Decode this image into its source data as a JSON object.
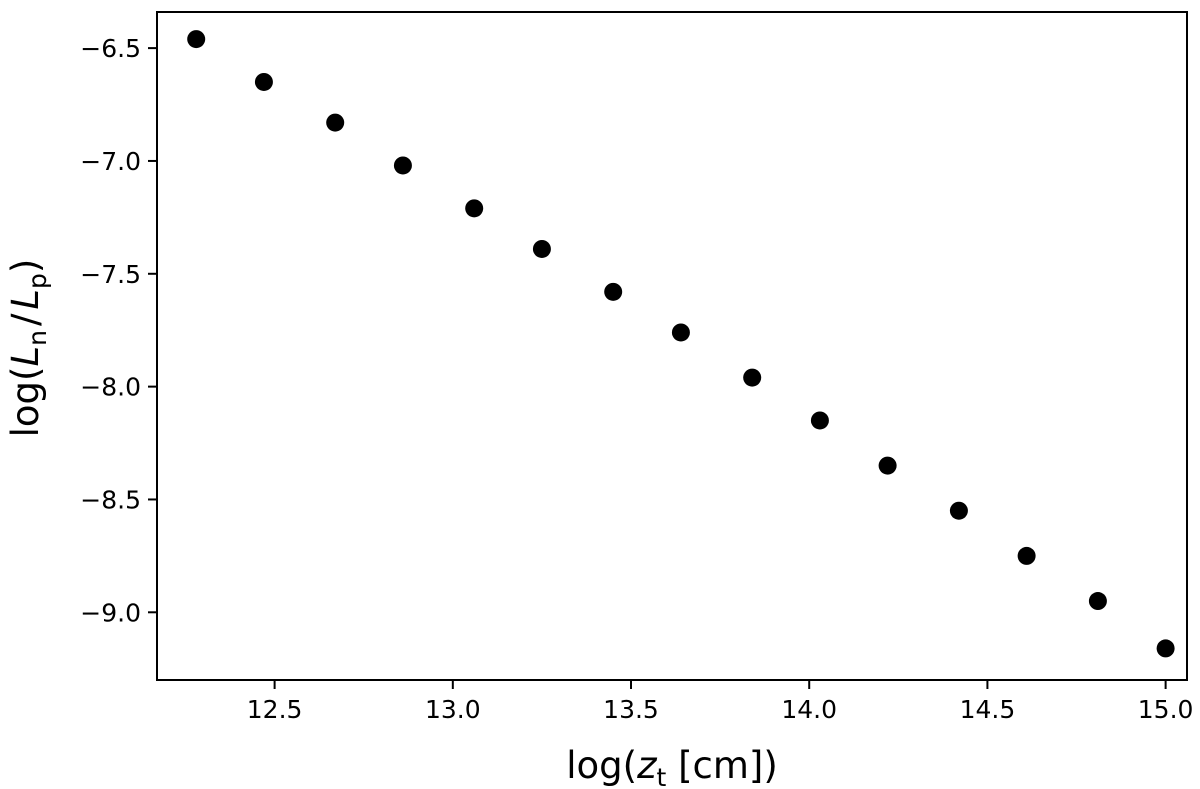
{
  "chart_data": {
    "type": "scatter",
    "title": "",
    "xlabel": {
      "prefix": "log(",
      "var": "z",
      "sub": "t",
      "suffix": " [cm])"
    },
    "ylabel": {
      "prefix": "log(",
      "var1": "L",
      "sub1": "n",
      "sep": "/",
      "var2": "L",
      "sub2": "p",
      "suffix": ")"
    },
    "xlim": [
      12.17,
      15.06
    ],
    "ylim": [
      -9.3,
      -6.34
    ],
    "xticks": [
      12.5,
      13.0,
      13.5,
      14.0,
      14.5,
      15.0
    ],
    "xtick_labels": [
      "12.5",
      "13.0",
      "13.5",
      "14.0",
      "14.5",
      "15.0"
    ],
    "yticks": [
      -6.5,
      -7.0,
      -7.5,
      -8.0,
      -8.5,
      -9.0
    ],
    "ytick_labels": [
      "−6.5",
      "−7.0",
      "−7.5",
      "−8.0",
      "−8.5",
      "−9.0"
    ],
    "grid": false,
    "marker_color": "#000000",
    "series": [
      {
        "x": [
          12.28,
          12.47,
          12.67,
          12.86,
          13.06,
          13.25,
          13.45,
          13.64,
          13.84,
          14.03,
          14.22,
          14.42,
          14.61,
          14.81,
          15.0
        ],
        "y": [
          -6.46,
          -6.65,
          -6.83,
          -7.02,
          -7.21,
          -7.39,
          -7.58,
          -7.76,
          -7.96,
          -8.15,
          -8.35,
          -8.55,
          -8.75,
          -8.95,
          -9.16
        ]
      }
    ]
  }
}
